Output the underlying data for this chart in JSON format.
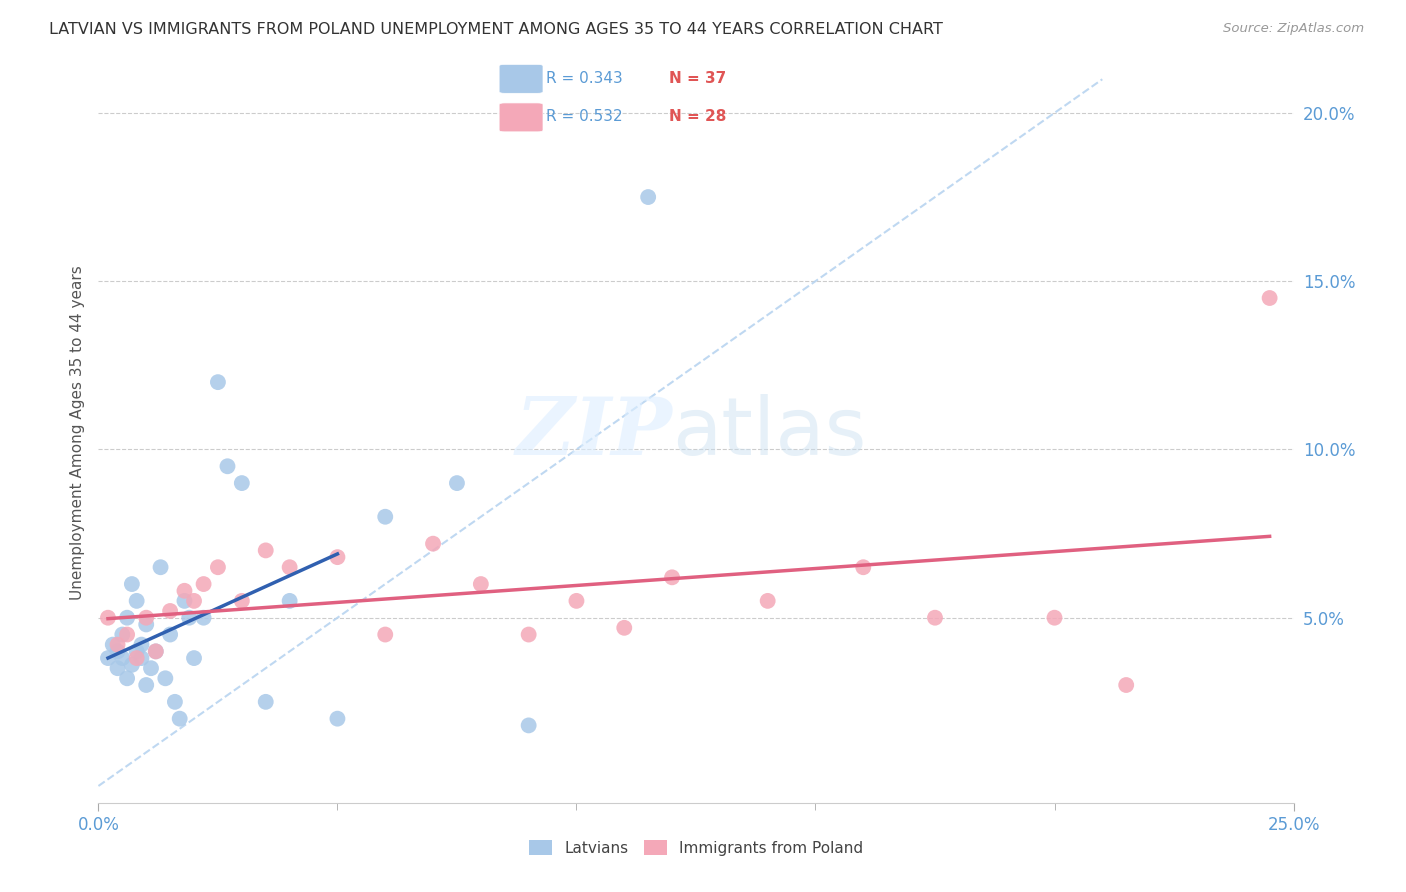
{
  "title": "LATVIAN VS IMMIGRANTS FROM POLAND UNEMPLOYMENT AMONG AGES 35 TO 44 YEARS CORRELATION CHART",
  "source": "Source: ZipAtlas.com",
  "ylabel": "Unemployment Among Ages 35 to 44 years",
  "xlim": [
    0.0,
    0.25
  ],
  "ylim": [
    -0.005,
    0.215
  ],
  "yticks_right": [
    0.05,
    0.1,
    0.15,
    0.2
  ],
  "background_color": "#ffffff",
  "legend_r1": "R = 0.343",
  "legend_n1": "N = 37",
  "legend_r2": "R = 0.532",
  "legend_n2": "N = 28",
  "latvian_color": "#a8c8e8",
  "poland_color": "#f4a8b8",
  "latvian_line_color": "#3060b0",
  "poland_line_color": "#e06080",
  "ref_line_color": "#b8d4f0",
  "r_text_color": "#5b9bd5",
  "n_text_color": "#e05555",
  "tick_color": "#5b9bd5",
  "latvian_x": [
    0.002,
    0.003,
    0.004,
    0.004,
    0.005,
    0.005,
    0.006,
    0.006,
    0.007,
    0.007,
    0.008,
    0.008,
    0.009,
    0.009,
    0.01,
    0.01,
    0.011,
    0.012,
    0.013,
    0.014,
    0.015,
    0.016,
    0.017,
    0.018,
    0.019,
    0.02,
    0.022,
    0.025,
    0.027,
    0.03,
    0.035,
    0.04,
    0.05,
    0.06,
    0.075,
    0.09,
    0.115
  ],
  "latvian_y": [
    0.038,
    0.042,
    0.04,
    0.035,
    0.038,
    0.045,
    0.05,
    0.032,
    0.06,
    0.036,
    0.055,
    0.04,
    0.038,
    0.042,
    0.03,
    0.048,
    0.035,
    0.04,
    0.065,
    0.032,
    0.045,
    0.025,
    0.02,
    0.055,
    0.05,
    0.038,
    0.05,
    0.12,
    0.095,
    0.09,
    0.025,
    0.055,
    0.02,
    0.08,
    0.09,
    0.018,
    0.175
  ],
  "poland_x": [
    0.002,
    0.004,
    0.006,
    0.008,
    0.01,
    0.012,
    0.015,
    0.018,
    0.02,
    0.022,
    0.025,
    0.03,
    0.035,
    0.04,
    0.05,
    0.06,
    0.07,
    0.08,
    0.09,
    0.1,
    0.11,
    0.12,
    0.14,
    0.16,
    0.175,
    0.2,
    0.215,
    0.245
  ],
  "poland_y": [
    0.05,
    0.042,
    0.045,
    0.038,
    0.05,
    0.04,
    0.052,
    0.058,
    0.055,
    0.06,
    0.065,
    0.055,
    0.07,
    0.065,
    0.068,
    0.045,
    0.072,
    0.06,
    0.045,
    0.055,
    0.047,
    0.062,
    0.055,
    0.065,
    0.05,
    0.05,
    0.03,
    0.145
  ],
  "latvian_line_xrange": [
    0.002,
    0.05
  ],
  "poland_line_xrange": [
    0.002,
    0.245
  ]
}
